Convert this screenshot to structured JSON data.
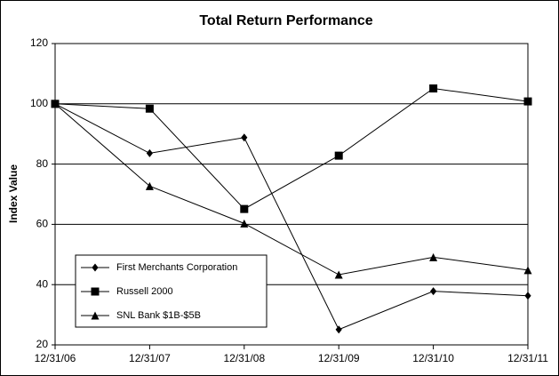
{
  "chart_data": {
    "type": "line",
    "title": "Total Return Performance",
    "y_label": "Index Value",
    "categories": [
      "12/31/06",
      "12/31/07",
      "12/31/08",
      "12/31/09",
      "12/31/10",
      "12/31/11"
    ],
    "series": [
      {
        "name": "First Merchants Corporation",
        "color": "#000000",
        "marker": "diamond",
        "values": [
          100,
          83.6,
          88.8,
          25.1,
          37.8,
          36.3
        ]
      },
      {
        "name": "Russell 2000",
        "color": "#000000",
        "marker": "square",
        "values": [
          100,
          98.4,
          65.1,
          82.8,
          105.1,
          100.8
        ]
      },
      {
        "name": "SNL Bank $1B-$5B",
        "color": "#000000",
        "marker": "triangle",
        "values": [
          100,
          72.7,
          60.3,
          43.3,
          49.1,
          44.8
        ]
      }
    ],
    "ylim": [
      20,
      120
    ],
    "yticks": [
      20,
      40,
      60,
      80,
      100,
      120
    ],
    "grid": true,
    "legend": "lower left"
  }
}
